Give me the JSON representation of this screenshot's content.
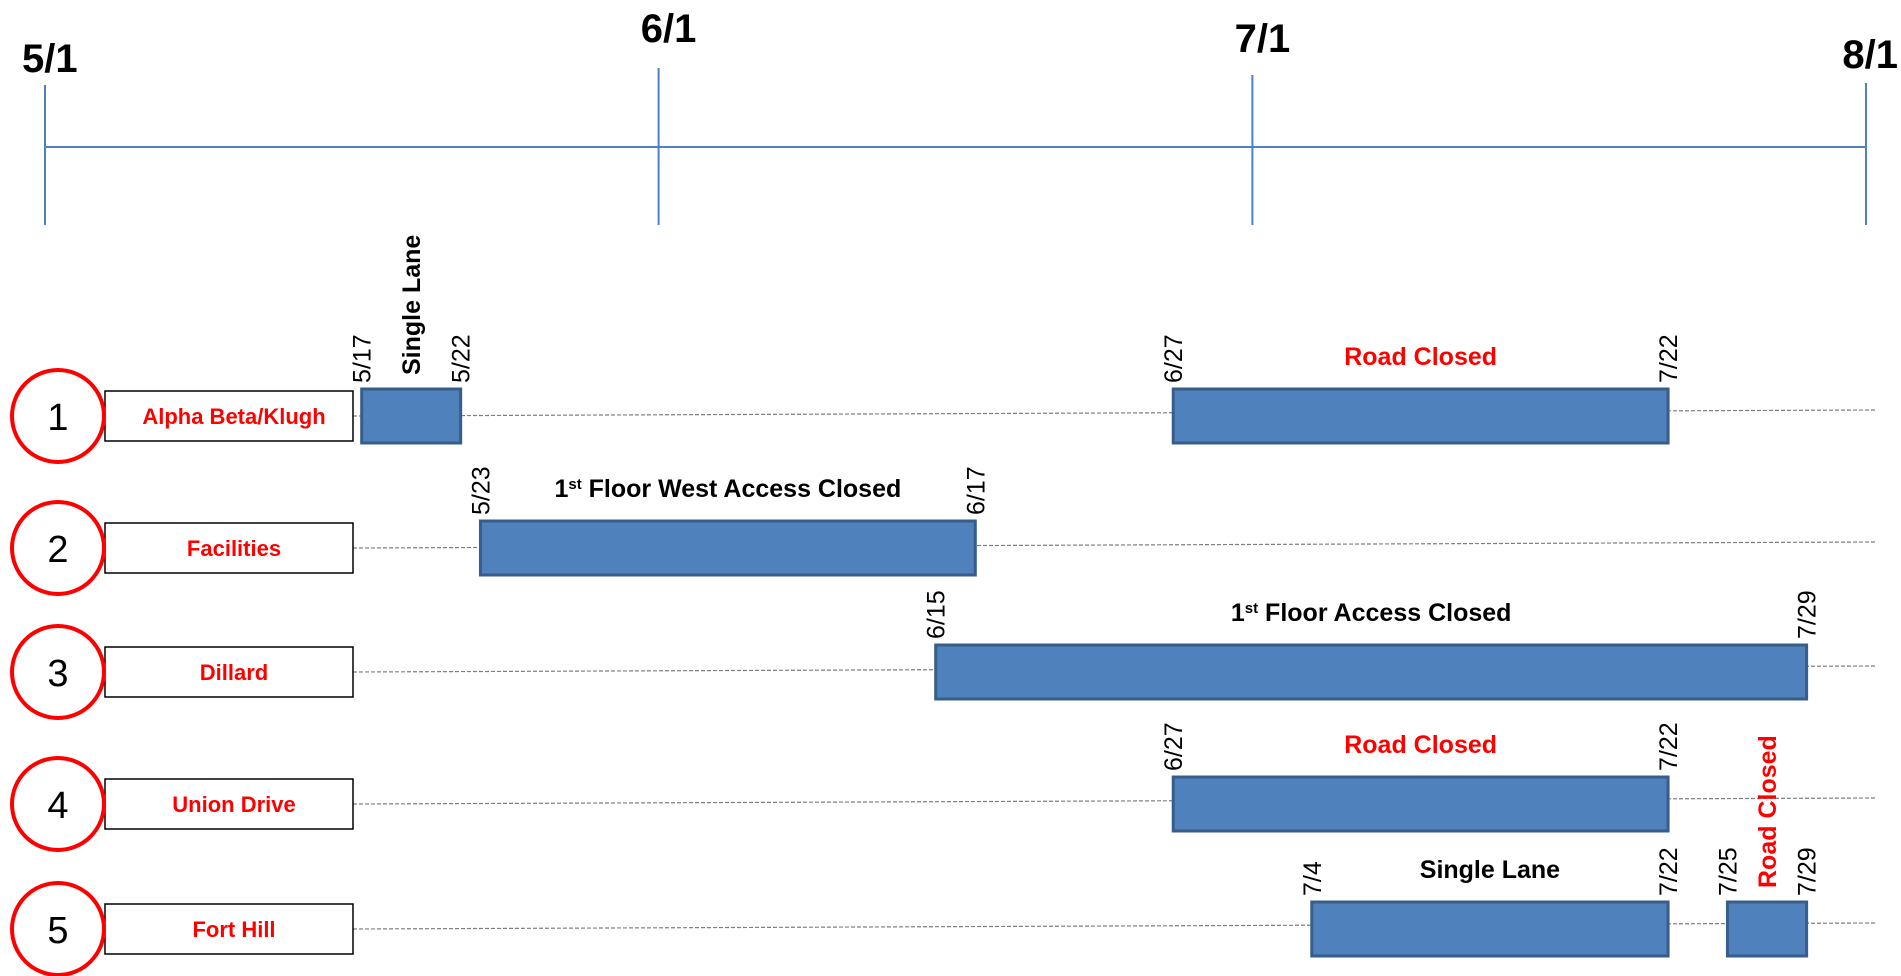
{
  "chart_data": {
    "type": "gantt",
    "title": "",
    "x_axis": {
      "ticks": [
        {
          "label": "5/1",
          "date": "2024-05-01"
        },
        {
          "label": "6/1",
          "date": "2024-06-01"
        },
        {
          "label": "7/1",
          "date": "2024-07-01"
        },
        {
          "label": "8/1",
          "date": "2024-08-01"
        }
      ],
      "range": [
        "2024-05-01",
        "2024-08-01"
      ]
    },
    "rows": [
      {
        "number": "1",
        "name": "Alpha Beta/Klugh"
      },
      {
        "number": "2",
        "name": "Facilities"
      },
      {
        "number": "3",
        "name": "Dillard"
      },
      {
        "number": "4",
        "name": "Union Drive"
      },
      {
        "number": "5",
        "name": "Fort Hill"
      }
    ],
    "tasks": [
      {
        "row": 0,
        "start": "2024-05-17",
        "end": "2024-05-22",
        "start_label": "5/17",
        "end_label": "5/22",
        "note": {
          "parts": [
            {
              "text": "Single Lane"
            }
          ],
          "color": "#000000",
          "orientation": "vertical"
        }
      },
      {
        "row": 0,
        "start": "2024-06-27",
        "end": "2024-07-22",
        "start_label": "6/27",
        "end_label": "7/22",
        "note": {
          "parts": [
            {
              "text": "Road Closed"
            }
          ],
          "color": "#ff0000",
          "orientation": "horizontal"
        }
      },
      {
        "row": 1,
        "start": "2024-05-23",
        "end": "2024-06-17",
        "start_label": "5/23",
        "end_label": "6/17",
        "note": {
          "parts": [
            {
              "text": "1"
            },
            {
              "text": "st",
              "sup": true
            },
            {
              "text": " Floor West Access Closed"
            }
          ],
          "color": "#000000",
          "orientation": "horizontal"
        }
      },
      {
        "row": 2,
        "start": "2024-06-15",
        "end": "2024-07-29",
        "start_label": "6/15",
        "end_label": "7/29",
        "note": {
          "parts": [
            {
              "text": "1"
            },
            {
              "text": "st",
              "sup": true
            },
            {
              "text": " Floor Access Closed"
            }
          ],
          "color": "#000000",
          "orientation": "horizontal"
        }
      },
      {
        "row": 3,
        "start": "2024-06-27",
        "end": "2024-07-22",
        "start_label": "6/27",
        "end_label": "7/22",
        "note": {
          "parts": [
            {
              "text": "Road Closed"
            }
          ],
          "color": "#ff0000",
          "orientation": "horizontal"
        }
      },
      {
        "row": 4,
        "start": "2024-07-04",
        "end": "2024-07-22",
        "start_label": "7/4",
        "end_label": "7/22",
        "note": {
          "parts": [
            {
              "text": "Single Lane"
            }
          ],
          "color": "#000000",
          "orientation": "horizontal"
        }
      },
      {
        "row": 4,
        "start": "2024-07-25",
        "end": "2024-07-29",
        "start_label": "7/25",
        "end_label": "7/29",
        "note": {
          "parts": [
            {
              "text": "Road Closed"
            }
          ],
          "color": "#ff0000",
          "orientation": "vertical"
        }
      }
    ],
    "colors": {
      "bar_fill": "#4f81bd",
      "bar_stroke": "#385d8a",
      "axis_line": "#4f81bd",
      "row_line": "#7f7f7f",
      "circle_stroke": "#ff0000",
      "row_name_text": "#ff0000"
    },
    "grid": false,
    "legend": "none"
  }
}
